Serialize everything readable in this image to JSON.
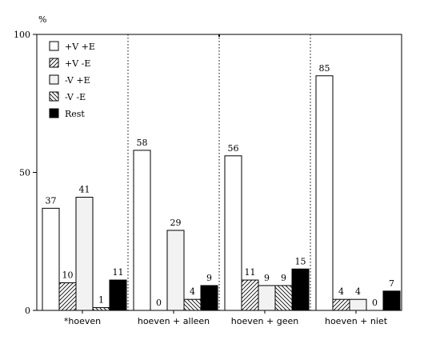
{
  "chart_data": {
    "type": "bar",
    "title": "",
    "xlabel": "",
    "ylabel": "%",
    "ylim": [
      0,
      100
    ],
    "yticks": [
      0,
      50,
      100
    ],
    "grid": false,
    "legend_position": "top-left",
    "categories": [
      "*hoeven",
      "hoeven + alleen",
      "hoeven + geen",
      "hoeven + niet"
    ],
    "series": [
      {
        "name": "+V +E",
        "pattern": "white",
        "values": [
          37,
          58,
          56,
          85
        ]
      },
      {
        "name": "+V -E",
        "pattern": "hatch-forward",
        "values": [
          10,
          0,
          11,
          4
        ]
      },
      {
        "name": "-V +E",
        "pattern": "light-gray",
        "values": [
          41,
          29,
          9,
          4
        ]
      },
      {
        "name": "-V -E",
        "pattern": "hatch-back",
        "values": [
          1,
          4,
          9,
          0
        ]
      },
      {
        "name": "Rest",
        "pattern": "black",
        "values": [
          11,
          9,
          15,
          7
        ]
      }
    ],
    "colors": {
      "white": "#ffffff",
      "light-gray": "#f2f2f2",
      "black": "#000000",
      "stroke": "#000000"
    }
  }
}
